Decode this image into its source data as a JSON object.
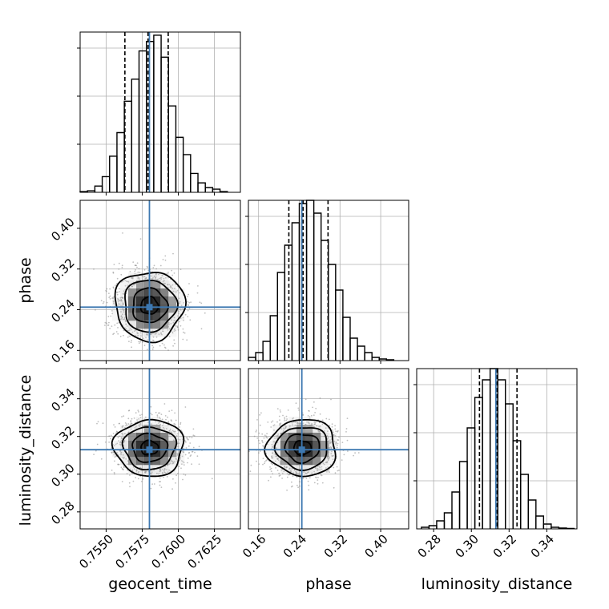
{
  "chart_data": {
    "type": "corner",
    "parameters": [
      "geocent_time",
      "phase",
      "luminosity_distance"
    ],
    "axis_labels": {
      "x": [
        "geocent_time",
        "phase",
        "luminosity_distance"
      ],
      "y": [
        "phase",
        "luminosity_distance"
      ]
    },
    "truth_color": "#3d78b1",
    "hist_color": "#000000",
    "truths": [
      0.758,
      0.245,
      0.313
    ],
    "ranges": [
      [
        0.7532,
        0.7643
      ],
      [
        0.14,
        0.455
      ],
      [
        0.271,
        0.356
      ]
    ],
    "ticks": [
      [
        {
          "v": 0.755,
          "t": "0.7550"
        },
        {
          "v": 0.7575,
          "t": "0.7575"
        },
        {
          "v": 0.76,
          "t": "0.7600"
        },
        {
          "v": 0.7625,
          "t": "0.7625"
        }
      ],
      [
        {
          "v": 0.16,
          "t": "0.16"
        },
        {
          "v": 0.24,
          "t": "0.24"
        },
        {
          "v": 0.32,
          "t": "0.32"
        },
        {
          "v": 0.4,
          "t": "0.40"
        }
      ],
      [
        {
          "v": 0.28,
          "t": "0.28"
        },
        {
          "v": 0.3,
          "t": "0.30"
        },
        {
          "v": 0.32,
          "t": "0.32"
        },
        {
          "v": 0.34,
          "t": "0.34"
        }
      ]
    ],
    "quantiles": [
      [
        0.7563,
        0.7579,
        0.7593
      ],
      [
        0.2195,
        0.2475,
        0.2965
      ],
      [
        0.3043,
        0.3135,
        0.3242
      ]
    ],
    "hist_max": [
      1.02,
      1.0,
      1.0
    ],
    "histograms": [
      {
        "bins": [
          0.7532,
          0.75371,
          0.75422,
          0.75473,
          0.75524,
          0.75575,
          0.75626,
          0.75677,
          0.75728,
          0.75779,
          0.7583,
          0.75881,
          0.75932,
          0.75983,
          0.76034,
          0.76085,
          0.76136,
          0.76187,
          0.76238,
          0.76289,
          0.7634
        ],
        "counts": [
          0.005,
          0.01,
          0.04,
          0.1,
          0.23,
          0.38,
          0.58,
          0.72,
          0.9,
          0.96,
          1.0,
          0.86,
          0.55,
          0.35,
          0.24,
          0.12,
          0.06,
          0.03,
          0.02,
          0.005
        ]
      },
      {
        "bins": [
          0.14,
          0.15429,
          0.16857,
          0.18286,
          0.19714,
          0.21143,
          0.22571,
          0.24,
          0.25429,
          0.26857,
          0.28286,
          0.29714,
          0.31143,
          0.32571,
          0.34,
          0.35429,
          0.36857,
          0.38286,
          0.39714,
          0.41143,
          0.42571
        ],
        "counts": [
          0.02,
          0.05,
          0.12,
          0.28,
          0.55,
          0.72,
          0.86,
          0.98,
          1.0,
          0.92,
          0.75,
          0.6,
          0.44,
          0.27,
          0.14,
          0.09,
          0.05,
          0.02,
          0.01,
          0.005
        ]
      },
      {
        "bins": [
          0.2735,
          0.27755,
          0.2816,
          0.28565,
          0.2897,
          0.29375,
          0.2978,
          0.30185,
          0.3059,
          0.30995,
          0.314,
          0.31805,
          0.3221,
          0.32615,
          0.3302,
          0.33425,
          0.3383,
          0.34235,
          0.3464,
          0.35045,
          0.3545
        ],
        "counts": [
          0.01,
          0.02,
          0.05,
          0.1,
          0.23,
          0.42,
          0.63,
          0.82,
          0.93,
          1.0,
          0.93,
          0.78,
          0.55,
          0.34,
          0.18,
          0.08,
          0.03,
          0.01,
          0.005,
          0.003
        ]
      }
    ],
    "density_2d": [
      {
        "panel": "phase_vs_geocent_time",
        "x": 0,
        "y": 1,
        "center": [
          0.758,
          0.248
        ],
        "sigma": [
          0.0012,
          0.034
        ],
        "tilt": 0.0,
        "contour_levels_sigma": [
          0.5,
          1.0,
          1.5,
          2.0
        ]
      },
      {
        "panel": "luminosity_distance_vs_geocent_time",
        "x": 0,
        "y": 2,
        "center": [
          0.758,
          0.314
        ],
        "sigma": [
          0.0012,
          0.0075
        ],
        "tilt": 0.0,
        "contour_levels_sigma": [
          0.5,
          1.0,
          1.5,
          2.0
        ]
      },
      {
        "panel": "luminosity_distance_vs_phase",
        "x": 1,
        "y": 2,
        "center": [
          0.246,
          0.314
        ],
        "sigma": [
          0.034,
          0.0075
        ],
        "tilt": 0.0,
        "contour_levels_sigma": [
          0.5,
          1.0,
          1.5,
          2.0
        ]
      }
    ]
  }
}
